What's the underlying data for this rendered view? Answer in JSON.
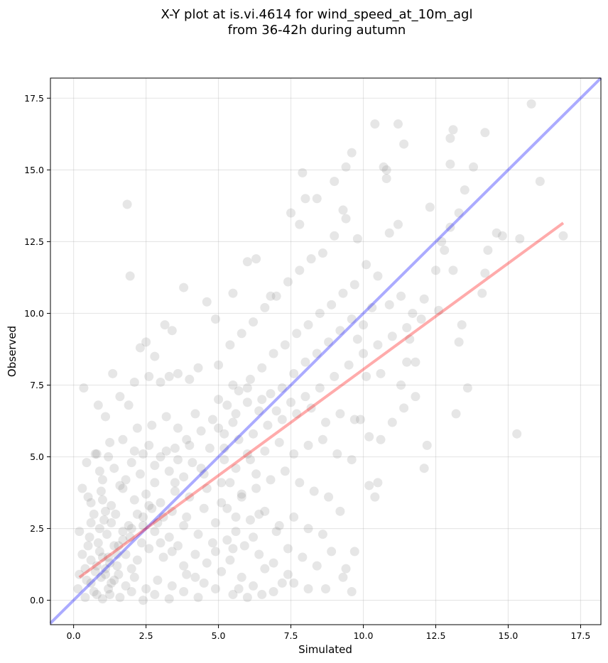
{
  "chart_data": {
    "type": "scatter",
    "title_lines": [
      "X-Y plot at is.vi.4614 for wind_speed_at_10m_agl",
      "from 36-42h during autumn"
    ],
    "xlabel": "Simulated",
    "ylabel": "Observed",
    "xlim": [
      -0.8,
      18.2
    ],
    "ylim": [
      -0.85,
      18.2
    ],
    "x_ticks": [
      "0.0",
      "2.5",
      "5.0",
      "7.5",
      "10.0",
      "12.5",
      "15.0",
      "17.5"
    ],
    "y_ticks": [
      "0.0",
      "2.5",
      "5.0",
      "7.5",
      "10.0",
      "12.5",
      "15.0",
      "17.5"
    ],
    "grid": true,
    "point_color": "#808080",
    "identity_line": {
      "color": "#0000ff",
      "points": [
        [
          -0.8,
          -0.8
        ],
        [
          18.2,
          18.2
        ]
      ]
    },
    "fit_line": {
      "color": "#ff0000",
      "points": [
        [
          0.2,
          0.8
        ],
        [
          16.9,
          13.15
        ]
      ]
    },
    "points": [
      [
        1.85,
        13.8
      ],
      [
        1.95,
        11.3
      ],
      [
        2.3,
        8.8
      ],
      [
        2.5,
        9.0
      ],
      [
        2.8,
        8.5
      ],
      [
        3.15,
        9.6
      ],
      [
        3.4,
        9.4
      ],
      [
        3.8,
        10.9
      ],
      [
        4.6,
        10.4
      ],
      [
        2.1,
        7.6
      ],
      [
        2.6,
        7.8
      ],
      [
        3.0,
        7.6
      ],
      [
        3.3,
        7.8
      ],
      [
        3.6,
        7.9
      ],
      [
        4.0,
        7.7
      ],
      [
        4.3,
        8.1
      ],
      [
        1.35,
        7.9
      ],
      [
        0.85,
        6.8
      ],
      [
        0.35,
        7.4
      ],
      [
        1.1,
        6.4
      ],
      [
        1.6,
        7.1
      ],
      [
        1.9,
        6.8
      ],
      [
        2.2,
        6.0
      ],
      [
        2.7,
        6.1
      ],
      [
        3.2,
        6.4
      ],
      [
        3.6,
        6.0
      ],
      [
        4.2,
        6.5
      ],
      [
        4.8,
        6.3
      ],
      [
        5.5,
        6.2
      ],
      [
        0.75,
        5.1
      ],
      [
        1.25,
        5.5
      ],
      [
        1.7,
        5.6
      ],
      [
        2.1,
        5.2
      ],
      [
        2.6,
        5.4
      ],
      [
        3.0,
        5.0
      ],
      [
        3.5,
        5.3
      ],
      [
        3.9,
        5.6
      ],
      [
        4.4,
        5.9
      ],
      [
        5.0,
        6.0
      ],
      [
        0.45,
        4.8
      ],
      [
        0.9,
        4.5
      ],
      [
        1.4,
        4.6
      ],
      [
        1.8,
        4.2
      ],
      [
        2.3,
        4.4
      ],
      [
        2.8,
        4.1
      ],
      [
        3.3,
        4.5
      ],
      [
        3.8,
        4.3
      ],
      [
        4.4,
        4.6
      ],
      [
        5.2,
        4.9
      ],
      [
        6.0,
        5.1
      ],
      [
        0.5,
        3.6
      ],
      [
        0.95,
        3.8
      ],
      [
        1.3,
        3.3
      ],
      [
        1.7,
        3.9
      ],
      [
        2.1,
        3.5
      ],
      [
        2.5,
        3.7
      ],
      [
        3.0,
        3.4
      ],
      [
        3.5,
        3.8
      ],
      [
        4.0,
        3.6
      ],
      [
        4.6,
        3.9
      ],
      [
        5.4,
        4.1
      ],
      [
        6.3,
        4.4
      ],
      [
        0.3,
        3.9
      ],
      [
        0.7,
        3.0
      ],
      [
        1.05,
        2.8
      ],
      [
        1.45,
        3.0
      ],
      [
        1.9,
        2.6
      ],
      [
        2.4,
        2.9
      ],
      [
        2.9,
        2.7
      ],
      [
        3.4,
        3.1
      ],
      [
        3.9,
        2.9
      ],
      [
        4.5,
        3.2
      ],
      [
        5.1,
        3.4
      ],
      [
        5.8,
        3.7
      ],
      [
        0.2,
        2.4
      ],
      [
        0.55,
        2.2
      ],
      [
        0.85,
        2.0
      ],
      [
        1.15,
        2.3
      ],
      [
        1.55,
        1.9
      ],
      [
        1.95,
        2.2
      ],
      [
        2.35,
        2.0
      ],
      [
        2.8,
        2.4
      ],
      [
        3.3,
        2.2
      ],
      [
        3.8,
        2.6
      ],
      [
        4.3,
        2.3
      ],
      [
        4.9,
        2.7
      ],
      [
        5.6,
        2.9
      ],
      [
        6.4,
        3.0
      ],
      [
        0.3,
        1.6
      ],
      [
        0.6,
        1.4
      ],
      [
        0.9,
        1.7
      ],
      [
        1.2,
        1.5
      ],
      [
        1.5,
        1.2
      ],
      [
        1.8,
        1.6
      ],
      [
        2.2,
        1.4
      ],
      [
        2.6,
        1.8
      ],
      [
        3.1,
        1.5
      ],
      [
        3.6,
        1.9
      ],
      [
        4.2,
        1.6
      ],
      [
        4.8,
        2.0
      ],
      [
        5.5,
        1.8
      ],
      [
        6.2,
        2.2
      ],
      [
        7.0,
        2.4
      ],
      [
        0.2,
        0.9
      ],
      [
        0.45,
        0.7
      ],
      [
        0.75,
        1.0
      ],
      [
        0.95,
        0.8
      ],
      [
        1.1,
        1.1
      ],
      [
        1.3,
        0.6
      ],
      [
        1.55,
        0.9
      ],
      [
        1.8,
        0.5
      ],
      [
        2.1,
        0.8
      ],
      [
        2.5,
        0.4
      ],
      [
        2.9,
        0.7
      ],
      [
        3.4,
        0.5
      ],
      [
        3.9,
        0.9
      ],
      [
        4.5,
        0.6
      ],
      [
        5.1,
        1.0
      ],
      [
        5.8,
        0.8
      ],
      [
        6.6,
        1.1
      ],
      [
        7.4,
        0.9
      ],
      [
        0.15,
        0.4
      ],
      [
        0.4,
        0.1
      ],
      [
        0.7,
        0.3
      ],
      [
        1.0,
        0.05
      ],
      [
        1.25,
        0.2
      ],
      [
        1.6,
        0.1
      ],
      [
        2.0,
        0.3
      ],
      [
        2.4,
        0.0
      ],
      [
        2.8,
        0.2
      ],
      [
        3.3,
        0.05
      ],
      [
        3.8,
        0.3
      ],
      [
        4.3,
        0.1
      ],
      [
        4.9,
        0.4
      ],
      [
        5.5,
        0.2
      ],
      [
        6.2,
        0.5
      ],
      [
        6.9,
        0.3
      ],
      [
        7.6,
        0.6
      ],
      [
        0.8,
        5.1
      ],
      [
        1.2,
        5.0
      ],
      [
        1.0,
        4.2
      ],
      [
        1.6,
        4.0
      ],
      [
        0.6,
        3.4
      ],
      [
        1.0,
        3.5
      ],
      [
        0.9,
        2.5
      ],
      [
        1.3,
        2.7
      ],
      [
        1.7,
        2.4
      ],
      [
        0.5,
        1.9
      ],
      [
        0.8,
        1.2
      ],
      [
        1.4,
        1.9
      ],
      [
        2.0,
        1.1
      ],
      [
        2.4,
        2.6
      ],
      [
        2.7,
        3.2
      ],
      [
        3.1,
        2.9
      ],
      [
        3.5,
        4.1
      ],
      [
        4.1,
        4.8
      ],
      [
        4.7,
        5.3
      ],
      [
        5.2,
        5.8
      ],
      [
        5.6,
        6.5
      ],
      [
        6.0,
        6.9
      ],
      [
        6.4,
        6.6
      ],
      [
        6.8,
        7.2
      ],
      [
        7.2,
        7.4
      ],
      [
        7.6,
        7.9
      ],
      [
        8.0,
        8.3
      ],
      [
        8.4,
        8.6
      ],
      [
        8.8,
        9.0
      ],
      [
        9.2,
        9.4
      ],
      [
        9.6,
        9.8
      ],
      [
        5.3,
        6.8
      ],
      [
        5.7,
        7.3
      ],
      [
        6.1,
        7.7
      ],
      [
        6.5,
        8.1
      ],
      [
        6.9,
        8.6
      ],
      [
        7.3,
        8.9
      ],
      [
        7.7,
        9.3
      ],
      [
        8.1,
        9.6
      ],
      [
        8.5,
        10.0
      ],
      [
        8.9,
        10.3
      ],
      [
        9.3,
        10.7
      ],
      [
        9.7,
        11.0
      ],
      [
        5.0,
        8.2
      ],
      [
        5.4,
        8.9
      ],
      [
        5.8,
        9.3
      ],
      [
        6.2,
        9.7
      ],
      [
        6.6,
        10.2
      ],
      [
        7.0,
        10.6
      ],
      [
        7.4,
        11.1
      ],
      [
        7.8,
        11.5
      ],
      [
        8.2,
        11.9
      ],
      [
        8.6,
        12.1
      ],
      [
        9.0,
        12.7
      ],
      [
        9.4,
        13.3
      ],
      [
        4.9,
        9.8
      ],
      [
        5.5,
        10.7
      ],
      [
        6.0,
        11.8
      ],
      [
        6.3,
        11.9
      ],
      [
        6.8,
        10.6
      ],
      [
        7.5,
        13.5
      ],
      [
        7.8,
        13.1
      ],
      [
        8.4,
        14.0
      ],
      [
        8.0,
        14.0
      ],
      [
        7.9,
        14.9
      ],
      [
        9.0,
        14.6
      ],
      [
        9.6,
        15.6
      ],
      [
        9.4,
        15.1
      ],
      [
        9.3,
        13.6
      ],
      [
        9.8,
        12.6
      ],
      [
        10.1,
        11.7
      ],
      [
        10.5,
        11.3
      ],
      [
        10.9,
        12.8
      ],
      [
        11.2,
        13.1
      ],
      [
        10.8,
        14.7
      ],
      [
        10.4,
        16.6
      ],
      [
        11.2,
        16.6
      ],
      [
        11.4,
        15.9
      ],
      [
        10.7,
        15.1
      ],
      [
        10.8,
        15.0
      ],
      [
        5.0,
        7.0
      ],
      [
        5.5,
        7.5
      ],
      [
        6.0,
        7.4
      ],
      [
        6.5,
        7.0
      ],
      [
        7.0,
        6.6
      ],
      [
        7.5,
        6.9
      ],
      [
        8.0,
        7.1
      ],
      [
        8.5,
        7.4
      ],
      [
        9.0,
        7.8
      ],
      [
        9.5,
        8.2
      ],
      [
        10.0,
        8.6
      ],
      [
        10.5,
        8.9
      ],
      [
        11.0,
        9.2
      ],
      [
        11.5,
        9.5
      ],
      [
        12.0,
        9.8
      ],
      [
        5.2,
        5.3
      ],
      [
        5.7,
        5.6
      ],
      [
        6.2,
        5.8
      ],
      [
        6.7,
        6.1
      ],
      [
        7.2,
        6.3
      ],
      [
        7.7,
        6.5
      ],
      [
        8.2,
        6.7
      ],
      [
        8.7,
        6.2
      ],
      [
        9.2,
        6.5
      ],
      [
        9.7,
        6.3
      ],
      [
        10.2,
        5.7
      ],
      [
        10.6,
        5.6
      ],
      [
        11.0,
        6.2
      ],
      [
        11.4,
        6.7
      ],
      [
        11.8,
        7.1
      ],
      [
        5.1,
        4.1
      ],
      [
        5.6,
        4.6
      ],
      [
        6.1,
        4.9
      ],
      [
        6.6,
        5.2
      ],
      [
        7.1,
        5.5
      ],
      [
        7.6,
        5.1
      ],
      [
        8.1,
        5.4
      ],
      [
        8.6,
        5.6
      ],
      [
        9.1,
        5.1
      ],
      [
        9.6,
        4.9
      ],
      [
        10.2,
        4.0
      ],
      [
        10.4,
        3.6
      ],
      [
        10.5,
        4.1
      ],
      [
        5.3,
        3.2
      ],
      [
        5.8,
        3.6
      ],
      [
        6.3,
        3.9
      ],
      [
        6.8,
        4.2
      ],
      [
        7.3,
        4.5
      ],
      [
        7.8,
        4.1
      ],
      [
        8.3,
        3.8
      ],
      [
        8.8,
        3.6
      ],
      [
        9.2,
        3.1
      ],
      [
        5.6,
        2.4
      ],
      [
        6.1,
        2.8
      ],
      [
        6.6,
        3.1
      ],
      [
        7.1,
        2.6
      ],
      [
        7.6,
        2.9
      ],
      [
        8.1,
        2.5
      ],
      [
        8.6,
        2.3
      ],
      [
        5.4,
        1.4
      ],
      [
        5.9,
        1.9
      ],
      [
        6.4,
        1.6
      ],
      [
        6.9,
        1.3
      ],
      [
        7.4,
        1.8
      ],
      [
        7.9,
        1.5
      ],
      [
        8.4,
        1.2
      ],
      [
        8.9,
        1.7
      ],
      [
        9.4,
        1.1
      ],
      [
        9.7,
        1.7
      ],
      [
        9.3,
        0.8
      ],
      [
        8.7,
        0.4
      ],
      [
        9.6,
        0.3
      ],
      [
        8.1,
        0.4
      ],
      [
        7.2,
        0.6
      ],
      [
        6.5,
        0.2
      ],
      [
        6.0,
        0.1
      ],
      [
        5.7,
        0.4
      ],
      [
        11.6,
        9.1
      ],
      [
        12.1,
        10.5
      ],
      [
        12.5,
        11.5
      ],
      [
        12.8,
        12.2
      ],
      [
        13.0,
        13.0
      ],
      [
        12.6,
        10.1
      ],
      [
        13.1,
        11.5
      ],
      [
        13.3,
        13.5
      ],
      [
        13.0,
        16.1
      ],
      [
        13.1,
        16.4
      ],
      [
        13.0,
        15.2
      ],
      [
        13.5,
        14.3
      ],
      [
        13.8,
        15.1
      ],
      [
        14.2,
        16.3
      ],
      [
        14.3,
        12.2
      ],
      [
        14.6,
        12.8
      ],
      [
        14.8,
        12.7
      ],
      [
        14.2,
        11.4
      ],
      [
        14.1,
        10.7
      ],
      [
        13.4,
        9.6
      ],
      [
        13.3,
        9.0
      ],
      [
        13.6,
        7.4
      ],
      [
        13.2,
        6.5
      ],
      [
        12.2,
        5.4
      ],
      [
        12.1,
        4.6
      ],
      [
        15.3,
        5.8
      ],
      [
        15.4,
        12.6
      ],
      [
        15.8,
        17.3
      ],
      [
        16.1,
        14.6
      ],
      [
        16.9,
        12.7
      ],
      [
        12.3,
        13.7
      ],
      [
        12.7,
        12.5
      ],
      [
        10.9,
        10.3
      ],
      [
        11.3,
        10.6
      ],
      [
        11.7,
        10.0
      ],
      [
        11.5,
        8.3
      ],
      [
        11.8,
        8.3
      ],
      [
        11.3,
        7.5
      ],
      [
        10.3,
        10.2
      ],
      [
        10.0,
        9.6
      ],
      [
        9.8,
        9.1
      ],
      [
        10.1,
        7.8
      ],
      [
        10.6,
        7.9
      ],
      [
        9.9,
        6.3
      ],
      [
        2.0,
        4.8
      ],
      [
        2.4,
        5.1
      ],
      [
        2.8,
        4.7
      ],
      [
        3.2,
        5.2
      ],
      [
        3.6,
        4.9
      ],
      [
        4.0,
        5.4
      ],
      [
        4.5,
        4.4
      ],
      [
        3.0,
        2.0
      ],
      [
        3.4,
        1.7
      ],
      [
        3.8,
        1.2
      ],
      [
        4.2,
        0.8
      ],
      [
        4.6,
        1.3
      ],
      [
        4.9,
        1.7
      ],
      [
        5.3,
        2.1
      ],
      [
        1.0,
        1.5
      ],
      [
        1.1,
        0.9
      ],
      [
        1.25,
        1.3
      ],
      [
        1.4,
        0.7
      ],
      [
        0.6,
        0.6
      ],
      [
        0.8,
        0.2
      ],
      [
        1.2,
        0.4
      ],
      [
        1.5,
        1.6
      ],
      [
        1.7,
        2.1
      ],
      [
        2.0,
        2.5
      ],
      [
        2.2,
        3.0
      ],
      [
        2.6,
        3.3
      ],
      [
        0.4,
        1.1
      ],
      [
        0.6,
        2.7
      ],
      [
        1.1,
        3.1
      ]
    ]
  }
}
